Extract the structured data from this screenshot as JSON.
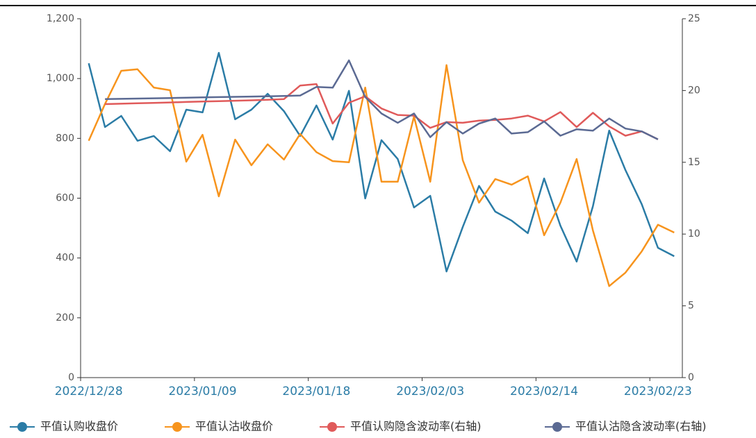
{
  "chart_data": {
    "type": "line",
    "categories": [
      "2022/12/28",
      null,
      null,
      null,
      null,
      null,
      null,
      "2023/01/09",
      null,
      null,
      null,
      null,
      null,
      null,
      "2023/01/18",
      null,
      null,
      null,
      null,
      null,
      null,
      "2023/02/03",
      null,
      null,
      null,
      null,
      null,
      null,
      "2023/02/14",
      null,
      null,
      null,
      null,
      null,
      null,
      "2023/02/23",
      null
    ],
    "series": [
      {
        "name": "平值认购收盘价",
        "color": "#2b7ca6",
        "axis": "y",
        "values": [
          1051,
          838,
          875,
          792,
          808,
          757,
          896,
          887,
          1086,
          864,
          896,
          949,
          891,
          808,
          910,
          796,
          959,
          599,
          794,
          731,
          569,
          608,
          355,
          504,
          641,
          555,
          525,
          483,
          666,
          508,
          388,
          573,
          826,
          694,
          580,
          434,
          406
        ]
      },
      {
        "name": "平值认沽收盘价",
        "color": "#f7941d",
        "axis": "y",
        "values": [
          792,
          915,
          1026,
          1031,
          970,
          961,
          722,
          812,
          606,
          796,
          710,
          780,
          729,
          815,
          754,
          724,
          720,
          970,
          655,
          655,
          873,
          655,
          1045,
          727,
          585,
          664,
          645,
          673,
          476,
          585,
          731,
          492,
          306,
          351,
          422,
          511,
          485
        ]
      },
      {
        "name": "平值认购隐含波动率(右轴)",
        "color": "#e05a5a",
        "axis": "y2",
        "values": [
          null,
          19.05,
          19.08,
          19.11,
          19.14,
          19.17,
          19.2,
          19.23,
          19.26,
          19.29,
          19.32,
          19.35,
          19.4,
          20.35,
          20.45,
          17.7,
          19.15,
          19.6,
          18.75,
          18.3,
          18.25,
          17.4,
          17.8,
          17.75,
          17.9,
          17.95,
          18.05,
          18.25,
          17.85,
          18.5,
          17.45,
          18.45,
          17.5,
          16.85,
          17.15,
          16.6,
          null
        ]
      },
      {
        "name": "平值认沽隐含波动率(右轴)",
        "color": "#5b6a93",
        "axis": "y2",
        "values": [
          null,
          19.4,
          19.42,
          19.44,
          19.46,
          19.48,
          19.5,
          19.52,
          19.54,
          19.56,
          19.58,
          19.6,
          19.62,
          19.65,
          20.25,
          20.2,
          22.1,
          19.55,
          18.4,
          17.75,
          18.4,
          16.75,
          17.8,
          17.0,
          17.7,
          18.05,
          17.0,
          17.1,
          17.85,
          16.85,
          17.3,
          17.2,
          18.05,
          17.35,
          17.15,
          16.6,
          null
        ]
      }
    ],
    "ylim": [
      0,
      1200
    ],
    "yticks": [
      0,
      200,
      400,
      600,
      800,
      {
        "value": 1000,
        "label": "1,000"
      },
      {
        "value": 1200,
        "label": "1,200"
      }
    ],
    "y2lim": [
      0,
      25
    ],
    "y2ticks": [
      0,
      5,
      10,
      15,
      20,
      25
    ],
    "grid": false,
    "legend": "bottom"
  }
}
